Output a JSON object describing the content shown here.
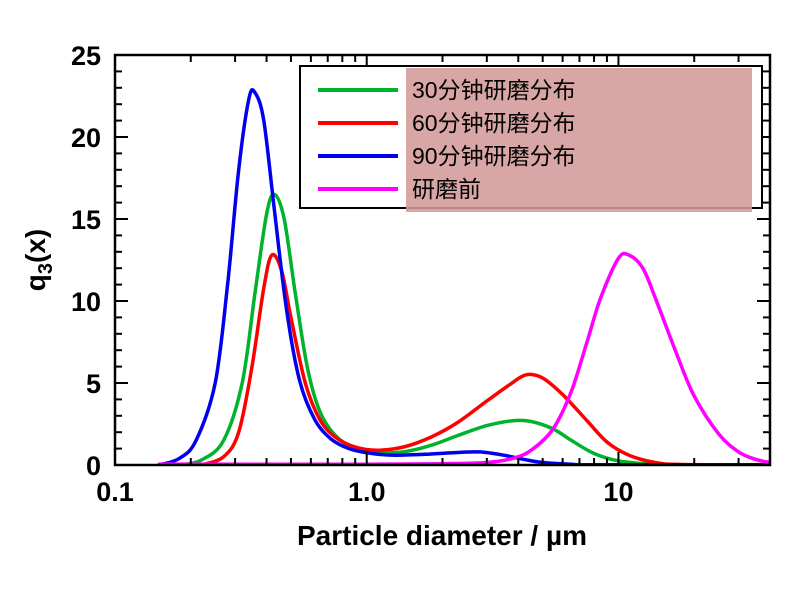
{
  "chart_data": {
    "type": "line",
    "title": "",
    "xlabel": "Particle diameter / µm",
    "ylabel": "q3(x)",
    "ylabel_parts": {
      "pre": "q",
      "sub": "3",
      "post": "(x)"
    },
    "x_scale": "log",
    "xlim": [
      0.1,
      40
    ],
    "ylim": [
      0,
      25
    ],
    "x_major_ticks": [
      {
        "v": 0.1,
        "label": "0.1"
      },
      {
        "v": 1,
        "label": "1.0"
      },
      {
        "v": 10,
        "label": "10"
      }
    ],
    "y_major_step": 5,
    "y_minor_step": 1,
    "grid": false,
    "legend_position": "top",
    "legend_overlay_color": "#d49a9a",
    "series": [
      {
        "name": "30分钟研磨分布",
        "color": "#00b32c",
        "points": [
          [
            0.18,
            0
          ],
          [
            0.22,
            0.3
          ],
          [
            0.27,
            1.5
          ],
          [
            0.32,
            5
          ],
          [
            0.36,
            10.5
          ],
          [
            0.4,
            15.3
          ],
          [
            0.43,
            16.5
          ],
          [
            0.47,
            15.0
          ],
          [
            0.52,
            10.5
          ],
          [
            0.58,
            6.0
          ],
          [
            0.65,
            3.3
          ],
          [
            0.75,
            1.8
          ],
          [
            0.9,
            1.0
          ],
          [
            1.1,
            0.75
          ],
          [
            1.4,
            0.8
          ],
          [
            1.8,
            1.2
          ],
          [
            2.3,
            1.8
          ],
          [
            3.0,
            2.4
          ],
          [
            3.8,
            2.7
          ],
          [
            4.5,
            2.65
          ],
          [
            5.5,
            2.2
          ],
          [
            6.5,
            1.5
          ],
          [
            8,
            0.7
          ],
          [
            10,
            0.25
          ],
          [
            13,
            0.07
          ],
          [
            18,
            0.02
          ],
          [
            40,
            0.02
          ]
        ]
      },
      {
        "name": "60分钟研磨分布",
        "color": "#ff0000",
        "points": [
          [
            0.22,
            0
          ],
          [
            0.27,
            0.5
          ],
          [
            0.31,
            2
          ],
          [
            0.35,
            6
          ],
          [
            0.39,
            10.8
          ],
          [
            0.42,
            12.8
          ],
          [
            0.46,
            11.8
          ],
          [
            0.5,
            9.0
          ],
          [
            0.57,
            5.0
          ],
          [
            0.65,
            2.8
          ],
          [
            0.75,
            1.7
          ],
          [
            0.9,
            1.1
          ],
          [
            1.1,
            0.9
          ],
          [
            1.4,
            1.1
          ],
          [
            1.8,
            1.7
          ],
          [
            2.3,
            2.6
          ],
          [
            3.0,
            3.9
          ],
          [
            3.7,
            4.9
          ],
          [
            4.3,
            5.5
          ],
          [
            5.0,
            5.3
          ],
          [
            6.0,
            4.3
          ],
          [
            7.5,
            2.7
          ],
          [
            9,
            1.4
          ],
          [
            11,
            0.6
          ],
          [
            14,
            0.15
          ],
          [
            18,
            0.03
          ],
          [
            40,
            0.02
          ]
        ]
      },
      {
        "name": "90分钟研磨分布",
        "color": "#0000ee",
        "points": [
          [
            0.15,
            0
          ],
          [
            0.18,
            0.4
          ],
          [
            0.21,
            1.5
          ],
          [
            0.25,
            5
          ],
          [
            0.28,
            11
          ],
          [
            0.31,
            18
          ],
          [
            0.34,
            22.3
          ],
          [
            0.36,
            22.7
          ],
          [
            0.39,
            21
          ],
          [
            0.43,
            15.5
          ],
          [
            0.48,
            9.5
          ],
          [
            0.54,
            5.2
          ],
          [
            0.62,
            2.8
          ],
          [
            0.72,
            1.6
          ],
          [
            0.85,
            1.0
          ],
          [
            1.05,
            0.7
          ],
          [
            1.3,
            0.6
          ],
          [
            1.7,
            0.65
          ],
          [
            2.2,
            0.75
          ],
          [
            2.8,
            0.8
          ],
          [
            3.5,
            0.6
          ],
          [
            4.2,
            0.35
          ],
          [
            5,
            0.15
          ],
          [
            6.5,
            0.05
          ],
          [
            8,
            0.02
          ],
          [
            40,
            0.02
          ]
        ]
      },
      {
        "name": "研磨前",
        "color": "#ff00ff",
        "points": [
          [
            0.15,
            0.05
          ],
          [
            1,
            0.05
          ],
          [
            2,
            0.08
          ],
          [
            3,
            0.15
          ],
          [
            3.8,
            0.4
          ],
          [
            4.5,
            0.9
          ],
          [
            5.5,
            2.2
          ],
          [
            6.5,
            4.5
          ],
          [
            7.5,
            7.5
          ],
          [
            8.5,
            10.2
          ],
          [
            10,
            12.6
          ],
          [
            11,
            12.8
          ],
          [
            12.5,
            12.0
          ],
          [
            14,
            10.2
          ],
          [
            17,
            6.8
          ],
          [
            20,
            4.2
          ],
          [
            25,
            1.9
          ],
          [
            30,
            0.8
          ],
          [
            35,
            0.35
          ],
          [
            40,
            0.15
          ]
        ]
      }
    ]
  }
}
